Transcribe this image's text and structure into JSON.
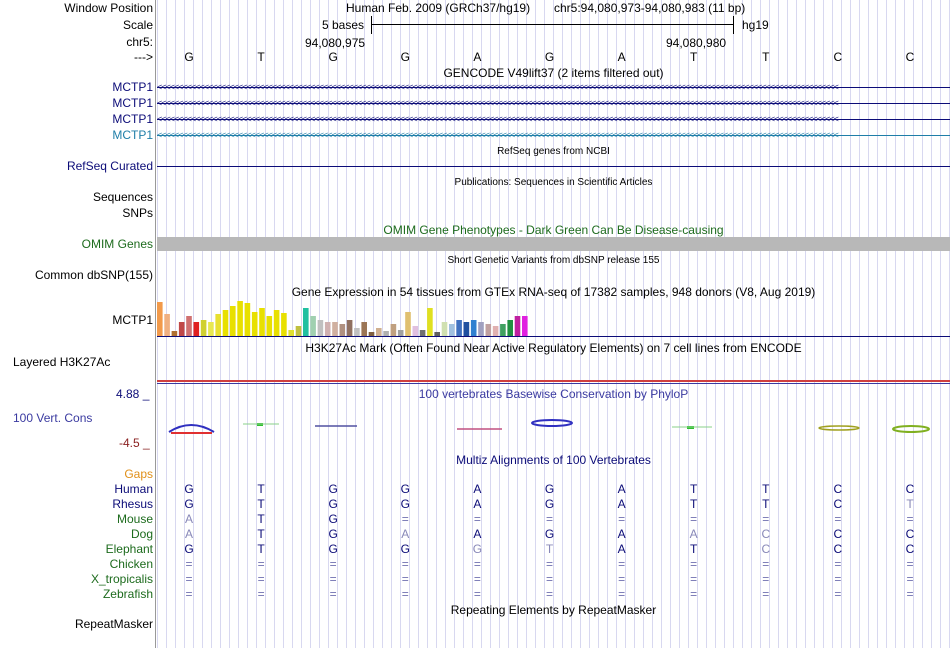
{
  "header": {
    "window_position_label": "Window Position",
    "scale_label": "Scale",
    "chr_label": "chr5:",
    "arrow_label": "--->",
    "assembly_title": "Human Feb. 2009 (GRCh37/hg19)",
    "position_title": "chr5:94,080,973-94,080,983 (11 bp)",
    "scale_text": "5 bases",
    "scale_db": "hg19",
    "coord_left": "94,080,975",
    "coord_right": "94,080,980",
    "bases": [
      "G",
      "T",
      "G",
      "G",
      "A",
      "G",
      "A",
      "T",
      "T",
      "C",
      "C"
    ]
  },
  "gencode": {
    "title": "GENCODE V49lift37 (2 items filtered out)",
    "tracks": [
      {
        "label": "MCTP1",
        "color": "#0c0c78"
      },
      {
        "label": "MCTP1",
        "color": "#0c0c78"
      },
      {
        "label": "MCTP1",
        "color": "#0c0c78"
      },
      {
        "label": "MCTP1",
        "color": "#1f7ea8"
      }
    ]
  },
  "refseq": {
    "title": "RefSeq genes from NCBI",
    "label": "RefSeq Curated"
  },
  "publications": {
    "title": "Publications: Sequences in Scientific Articles",
    "label1": "Sequences",
    "label2": "SNPs"
  },
  "omim": {
    "title": "OMIM Gene Phenotypes - Dark Green Can Be Disease-causing",
    "label": "OMIM Genes"
  },
  "dbsnp": {
    "title": "Short Genetic Variants from dbSNP release 155",
    "label": "Common dbSNP(155)"
  },
  "gtex": {
    "title": "Gene Expression in 54 tissues from GTEx RNA-seq of 17382 samples, 948 donors (V8, Aug 2019)",
    "label": "MCTP1"
  },
  "h3k27ac": {
    "title": "H3K27Ac Mark (Often Found Near Active Regulatory Elements) on 7 cell lines from ENCODE",
    "label": "Layered H3K27Ac"
  },
  "phylop": {
    "title": "100 vertebrates Basewise Conservation by PhyloP",
    "label": "100 Vert. Cons",
    "max": "4.88 _",
    "min": "-4.5 _"
  },
  "multiz": {
    "title": "Multiz Alignments of 100 Vertebrates",
    "gaps_label": "Gaps",
    "species": [
      {
        "name": "Human",
        "color": "#0c0c78",
        "bases": [
          "G",
          "T",
          "G",
          "G",
          "A",
          "G",
          "A",
          "T",
          "T",
          "C",
          "C"
        ]
      },
      {
        "name": "Rhesus",
        "color": "#0c0c78",
        "bases": [
          "G",
          "T",
          "G",
          "G",
          "A",
          "G",
          "A",
          "T",
          "T",
          "C",
          "T"
        ]
      },
      {
        "name": "Mouse",
        "color": "#1d6b1d",
        "bases": [
          "A",
          "T",
          "G",
          "=",
          "=",
          "=",
          "=",
          "=",
          "=",
          "=",
          "="
        ]
      },
      {
        "name": "Dog",
        "color": "#1d6b1d",
        "bases": [
          "A",
          "T",
          "G",
          "A",
          "A",
          "G",
          "A",
          "A",
          "C",
          "C",
          "C"
        ]
      },
      {
        "name": "Elephant",
        "color": "#1d6b1d",
        "bases": [
          "G",
          "T",
          "G",
          "G",
          "G",
          "T",
          "A",
          "T",
          "C",
          "C",
          "C"
        ]
      },
      {
        "name": "Chicken",
        "color": "#1d6b1d",
        "bases": [
          "=",
          "=",
          "=",
          "=",
          "=",
          "=",
          "=",
          "=",
          "=",
          "=",
          "="
        ]
      },
      {
        "name": "X_tropicalis",
        "color": "#1d6b1d",
        "bases": [
          "=",
          "=",
          "=",
          "=",
          "=",
          "=",
          "=",
          "=",
          "=",
          "=",
          "="
        ]
      },
      {
        "name": "Zebrafish",
        "color": "#1d6b1d",
        "bases": [
          "=",
          "=",
          "=",
          "=",
          "=",
          "=",
          "=",
          "=",
          "=",
          "=",
          "="
        ]
      }
    ]
  },
  "repeatmasker": {
    "title": "Repeating Elements by RepeatMasker",
    "label": "RepeatMasker"
  },
  "colors": {
    "navy": "#0c0c78",
    "green": "#1d6b1d",
    "orange": "#e0901a",
    "omim_bar": "#b8b8b8",
    "red_line": "#d04040"
  }
}
